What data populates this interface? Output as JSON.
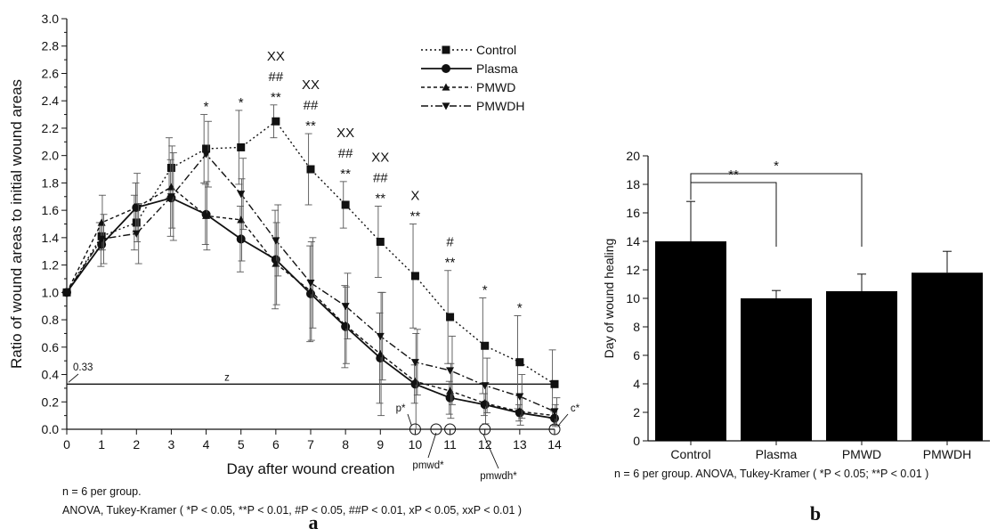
{
  "chart_data": [
    {
      "type": "line",
      "panel_label": "a",
      "xlabel": "Day after wound creation",
      "ylabel": "Ratio of wound areas to initial wound areas",
      "xlim": [
        0,
        14
      ],
      "ylim": [
        0.0,
        3.0
      ],
      "x_ticks": [
        "0",
        "1",
        "2",
        "3",
        "4",
        "5",
        "6",
        "7",
        "8",
        "9",
        "10",
        "11",
        "12",
        "13",
        "14"
      ],
      "y_ticks": [
        "0.0",
        "0.2",
        "0.4",
        "0.6",
        "0.8",
        "1.0",
        "1.2",
        "1.4",
        "1.6",
        "1.8",
        "2.0",
        "2.2",
        "2.4",
        "2.6",
        "2.8",
        "3.0"
      ],
      "legend_position": "top-right",
      "series": [
        {
          "name": "Control",
          "marker": "square",
          "dash": "dotted",
          "x": [
            0,
            1,
            2,
            3,
            4,
            5,
            6,
            7,
            8,
            9,
            10,
            11,
            12,
            13,
            14
          ],
          "y": [
            1.0,
            1.41,
            1.51,
            1.91,
            2.05,
            2.06,
            2.25,
            1.9,
            1.64,
            1.37,
            1.12,
            0.82,
            0.61,
            0.49,
            0.33
          ],
          "err": [
            0,
            0.1,
            0.2,
            0.22,
            0.25,
            0.27,
            0.12,
            0.26,
            0.17,
            0.26,
            0.38,
            0.34,
            0.35,
            0.34,
            0.25
          ]
        },
        {
          "name": "Plasma",
          "marker": "circle",
          "dash": "solid",
          "x": [
            0,
            1,
            2,
            3,
            4,
            5,
            6,
            7,
            8,
            9,
            10,
            11,
            12,
            13,
            14
          ],
          "y": [
            1.0,
            1.35,
            1.62,
            1.69,
            1.57,
            1.39,
            1.24,
            0.99,
            0.75,
            0.52,
            0.33,
            0.23,
            0.18,
            0.12,
            0.08
          ],
          "err": [
            0,
            0.16,
            0.18,
            0.28,
            0.22,
            0.24,
            0.36,
            0.35,
            0.3,
            0.33,
            0.14,
            0.12,
            0.08,
            0.06,
            0.05
          ]
        },
        {
          "name": "PMWD",
          "marker": "triangle-up",
          "dash": "dashed",
          "x": [
            0,
            1,
            2,
            3,
            4,
            5,
            6,
            7,
            8,
            9,
            10,
            11,
            12,
            13,
            14
          ],
          "y": [
            1.0,
            1.51,
            1.62,
            1.77,
            1.56,
            1.53,
            1.21,
            1.01,
            0.76,
            0.55,
            0.35,
            0.28,
            0.19,
            0.13,
            0.1
          ],
          "err": [
            0,
            0.2,
            0.25,
            0.3,
            0.25,
            0.3,
            0.3,
            0.36,
            0.28,
            0.45,
            0.35,
            0.2,
            0.15,
            0.1,
            0.08
          ]
        },
        {
          "name": "PMWDH",
          "marker": "triangle-down",
          "dash": "dashdot",
          "x": [
            0,
            1,
            2,
            3,
            4,
            5,
            6,
            7,
            8,
            9,
            10,
            11,
            12,
            13,
            14
          ],
          "y": [
            1.0,
            1.39,
            1.43,
            1.7,
            2.01,
            1.72,
            1.38,
            1.07,
            0.9,
            0.68,
            0.49,
            0.43,
            0.32,
            0.24,
            0.13
          ],
          "err": [
            0,
            0.18,
            0.22,
            0.32,
            0.24,
            0.26,
            0.26,
            0.33,
            0.24,
            0.32,
            0.24,
            0.25,
            0.2,
            0.16,
            0.1
          ]
        }
      ],
      "reference_line": {
        "y": 0.33,
        "label": "z",
        "value_label": "0.33"
      },
      "significance": [
        {
          "x": 4,
          "lines": [
            "*"
          ]
        },
        {
          "x": 5,
          "lines": [
            "*"
          ]
        },
        {
          "x": 6,
          "lines": [
            "XX",
            "##",
            "**"
          ]
        },
        {
          "x": 7,
          "lines": [
            "XX",
            "##",
            "**"
          ]
        },
        {
          "x": 8,
          "lines": [
            "XX",
            "##",
            "**"
          ]
        },
        {
          "x": 9,
          "lines": [
            "XX",
            "##",
            "**"
          ]
        },
        {
          "x": 10,
          "lines": [
            "X",
            "**"
          ]
        },
        {
          "x": 11,
          "lines": [
            "#",
            "**"
          ]
        },
        {
          "x": 12,
          "lines": [
            "*"
          ]
        },
        {
          "x": 13,
          "lines": [
            "*"
          ]
        }
      ],
      "healing_markers": [
        {
          "x": 10,
          "label": "p*"
        },
        {
          "x": 10.6,
          "label": "pmwd*"
        },
        {
          "x": 12,
          "label": "pmwdh*"
        },
        {
          "x": 14,
          "label": "c*"
        }
      ],
      "footnote_line1": "n = 6 per group.",
      "footnote_line2": "ANOVA, Tukey-Kramer ( *P < 0.05, **P < 0.01, #P < 0.05, ##P < 0.01, xP < 0.05, xxP < 0.01 )"
    },
    {
      "type": "bar",
      "panel_label": "b",
      "ylabel": "Day of wound healing",
      "ylim": [
        0,
        20
      ],
      "y_ticks": [
        "0",
        "2",
        "4",
        "6",
        "8",
        "10",
        "12",
        "14",
        "16",
        "18",
        "20"
      ],
      "categories": [
        "Control",
        "Plasma",
        "PMWD",
        "PMWDH"
      ],
      "values": [
        14.0,
        10.0,
        10.5,
        11.8
      ],
      "err": [
        2.8,
        0.55,
        1.2,
        1.5
      ],
      "brackets": [
        {
          "from": "Control",
          "to": "Plasma",
          "label": "**"
        },
        {
          "from": "Control",
          "to": "PMWD",
          "label": "*"
        }
      ],
      "footnote": "n = 6 per group. ANOVA, Tukey-Kramer ( *P < 0.05; **P < 0.01 )"
    }
  ]
}
